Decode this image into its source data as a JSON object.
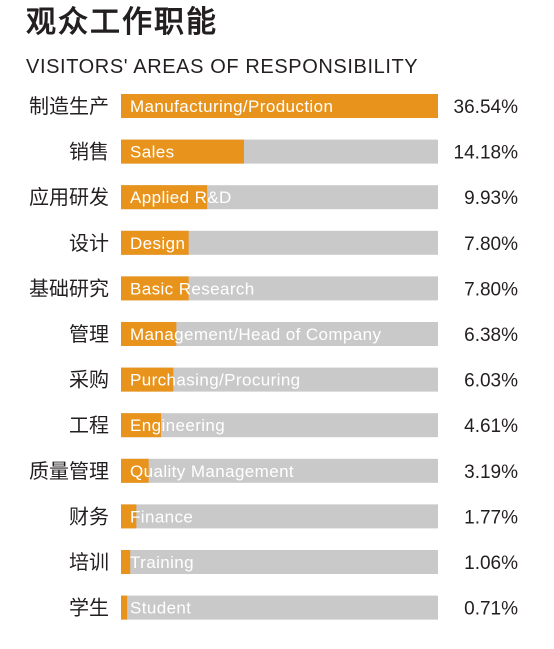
{
  "title_zh": "观众工作职能",
  "title_en": "VISITORS' AREAS OF RESPONSIBILITY",
  "colors": {
    "accent": "#e8941c",
    "track": "#c9c9c9",
    "bar_text": "#ffffff",
    "text": "#231f20"
  },
  "chart_data": {
    "type": "bar",
    "orientation": "horizontal",
    "title": "观众工作职能",
    "subtitle": "VISITORS' AREAS OF RESPONSIBILITY",
    "xlim": [
      0,
      36.54
    ],
    "grid": false,
    "legend": "none",
    "categories_zh": [
      "制造生产",
      "销售",
      "应用研发",
      "设计",
      "基础研究",
      "管理",
      "采购",
      "工程",
      "质量管理",
      "财务",
      "培训",
      "学生"
    ],
    "categories_en": [
      "Manufacturing/Production",
      "Sales",
      "Applied R&D",
      "Design",
      "Basic Research",
      "Management/Head of Company",
      "Purchasing/Procuring",
      "Engineering",
      "Quality Management",
      "Finance",
      "Training",
      "Student"
    ],
    "values": [
      36.54,
      14.18,
      9.93,
      7.8,
      7.8,
      6.38,
      6.03,
      4.61,
      3.19,
      1.77,
      1.06,
      0.71
    ],
    "value_labels": [
      "36.54%",
      "14.18%",
      "9.93%",
      "7.80%",
      "7.80%",
      "6.38%",
      "6.03%",
      "4.61%",
      "3.19%",
      "1.77%",
      "1.06%",
      "0.71%"
    ]
  }
}
